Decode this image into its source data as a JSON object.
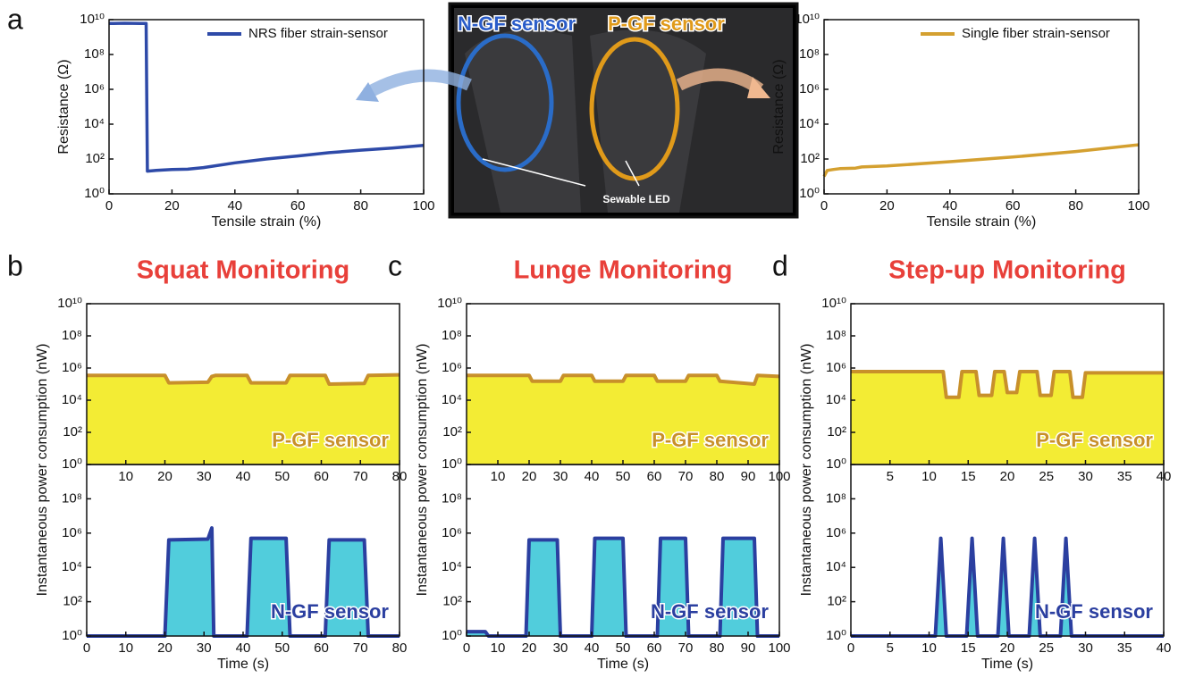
{
  "figure": {
    "panel_labels": [
      "a",
      "b",
      "c",
      "d"
    ],
    "photo_labels": [
      "N-GF sensor",
      "P-GF sensor",
      "Sewable LED"
    ]
  },
  "chart_data": [
    {
      "type": "line",
      "xlabel": "Tensile strain (%)",
      "ylabel": "Resistance (Ω)",
      "log_y": true,
      "xlim": [
        0,
        100
      ],
      "xticks": [
        0,
        20,
        40,
        60,
        80,
        100
      ],
      "ylim": [
        1,
        10000000000
      ],
      "yticks": [
        {
          "value": 1,
          "label": "10⁰"
        },
        {
          "value": 100,
          "label": "10²"
        },
        {
          "value": 10000,
          "label": "10⁴"
        },
        {
          "value": 1000000,
          "label": "10⁶"
        },
        {
          "value": 100000000,
          "label": "10⁸"
        },
        {
          "value": 10000000000,
          "label": "10¹⁰"
        }
      ],
      "x": [
        0,
        5,
        10,
        11.8,
        12.2,
        15,
        20,
        25,
        30,
        40,
        50,
        60,
        70,
        80,
        90,
        100
      ],
      "series": [
        {
          "name": "NRS fiber strain-sensor",
          "color": "#2e4aa8",
          "values": [
            6000000000,
            6200000000,
            6000000000,
            6000000000,
            20,
            22,
            25,
            26,
            32,
            60,
            100,
            150,
            230,
            320,
            420,
            600
          ]
        }
      ]
    },
    {
      "type": "line",
      "xlabel": "Tensile strain (%)",
      "ylabel": "Resistance (Ω)",
      "log_y": true,
      "xlim": [
        0,
        100
      ],
      "xticks": [
        0,
        20,
        40,
        60,
        80,
        100
      ],
      "ylim": [
        1,
        10000000000
      ],
      "yticks": [
        {
          "value": 1,
          "label": "10⁰"
        },
        {
          "value": 100,
          "label": "10²"
        },
        {
          "value": 10000,
          "label": "10⁴"
        },
        {
          "value": 1000000,
          "label": "10⁶"
        },
        {
          "value": 100000000,
          "label": "10⁸"
        },
        {
          "value": 10000000000,
          "label": "10¹⁰"
        }
      ],
      "x": [
        0,
        0.5,
        1,
        3,
        5,
        10,
        12,
        20,
        40,
        60,
        80,
        100
      ],
      "series": [
        {
          "name": "Single fiber strain-sensor",
          "color": "#d4a030",
          "values": [
            10,
            15,
            22,
            25,
            28,
            30,
            35,
            40,
            70,
            130,
            270,
            650
          ]
        }
      ]
    },
    {
      "type": "area",
      "title": "Squat Monitoring",
      "ylabel": "Instantaneous power consumption (nW)",
      "log_y": true,
      "xlim": [
        0,
        80
      ],
      "xticks": [
        10,
        20,
        30,
        40,
        50,
        60,
        70,
        80
      ],
      "ylim": [
        1,
        10000000000
      ],
      "yticks": [
        {
          "value": 1,
          "label": "10⁰"
        },
        {
          "value": 100,
          "label": "10²"
        },
        {
          "value": 10000,
          "label": "10⁴"
        },
        {
          "value": 1000000,
          "label": "10⁶"
        },
        {
          "value": 100000000,
          "label": "10⁸"
        },
        {
          "value": 10000000000,
          "label": "10¹⁰"
        }
      ],
      "x": [
        0,
        20,
        21,
        31,
        32,
        33,
        41,
        42,
        51,
        52,
        61,
        62,
        71,
        72,
        80
      ],
      "series": [
        {
          "name": "P-GF sensor",
          "color": "#c8902a",
          "fill": "#f2ea1e",
          "values": [
            350000,
            350000,
            120000,
            130000,
            300000,
            350000,
            350000,
            120000,
            120000,
            350000,
            350000,
            100000,
            110000,
            350000,
            380000
          ]
        }
      ]
    },
    {
      "type": "area",
      "xlabel": "Time (s)",
      "log_y": true,
      "xlim": [
        0,
        80
      ],
      "xticks": [
        0,
        10,
        20,
        30,
        40,
        50,
        60,
        70,
        80
      ],
      "ylim": [
        1,
        10000000000
      ],
      "yticks": [
        {
          "value": 1,
          "label": "10⁰"
        },
        {
          "value": 100,
          "label": "10²"
        },
        {
          "value": 10000,
          "label": "10⁴"
        },
        {
          "value": 1000000,
          "label": "10⁶"
        },
        {
          "value": 100000000,
          "label": "10⁸"
        }
      ],
      "x": [
        0,
        20,
        21,
        31,
        32,
        32.5,
        41,
        42,
        51,
        52,
        61,
        62,
        71,
        72,
        80
      ],
      "series": [
        {
          "name": "N-GF sensor",
          "color": "#2b3fa0",
          "fill": "#3ec8d8",
          "values": [
            1,
            1,
            400000,
            450000,
            2000000,
            1,
            1,
            500000,
            500000,
            1,
            1,
            400000,
            400000,
            1,
            1
          ]
        }
      ]
    },
    {
      "type": "area",
      "title": "Lunge Monitoring",
      "ylabel": "Instantaneous power consumption (nW)",
      "log_y": true,
      "xlim": [
        0,
        100
      ],
      "xticks": [
        10,
        20,
        30,
        40,
        50,
        60,
        70,
        80,
        90,
        100
      ],
      "ylim": [
        1,
        10000000000
      ],
      "yticks": [
        {
          "value": 1,
          "label": "10⁰"
        },
        {
          "value": 100,
          "label": "10²"
        },
        {
          "value": 10000,
          "label": "10⁴"
        },
        {
          "value": 1000000,
          "label": "10⁶"
        },
        {
          "value": 100000000,
          "label": "10⁸"
        },
        {
          "value": 10000000000,
          "label": "10¹⁰"
        }
      ],
      "x": [
        0,
        20,
        21,
        30,
        31,
        40,
        41,
        50,
        51,
        60,
        61,
        70,
        71,
        80,
        81,
        92,
        93,
        100
      ],
      "series": [
        {
          "name": "P-GF sensor",
          "color": "#c8902a",
          "fill": "#f2ea1e",
          "values": [
            350000,
            350000,
            150000,
            150000,
            350000,
            350000,
            150000,
            150000,
            350000,
            350000,
            150000,
            150000,
            350000,
            350000,
            150000,
            100000,
            350000,
            300000
          ]
        }
      ]
    },
    {
      "type": "area",
      "xlabel": "Time (s)",
      "log_y": true,
      "xlim": [
        0,
        100
      ],
      "xticks": [
        0,
        10,
        20,
        30,
        40,
        50,
        60,
        70,
        80,
        90,
        100
      ],
      "ylim": [
        1,
        10000000000
      ],
      "yticks": [
        {
          "value": 1,
          "label": "10⁰"
        },
        {
          "value": 100,
          "label": "10²"
        },
        {
          "value": 10000,
          "label": "10⁴"
        },
        {
          "value": 1000000,
          "label": "10⁶"
        },
        {
          "value": 100000000,
          "label": "10⁸"
        }
      ],
      "x": [
        0,
        6,
        7,
        19,
        20,
        29,
        30,
        40,
        41,
        50,
        51,
        61,
        62,
        70,
        71,
        81,
        82,
        92,
        93,
        100
      ],
      "series": [
        {
          "name": "N-GF sensor",
          "color": "#2b3fa0",
          "fill": "#3ec8d8",
          "values": [
            1.8,
            1.8,
            1,
            1,
            400000,
            400000,
            1,
            1,
            500000,
            500000,
            1,
            1,
            500000,
            500000,
            1,
            1,
            500000,
            500000,
            1,
            1
          ]
        }
      ]
    },
    {
      "type": "area",
      "title": "Step-up Monitoring",
      "ylabel": "Instantaneous power consumption (nW)",
      "log_y": true,
      "xlim": [
        0,
        40
      ],
      "xticks": [
        5,
        10,
        15,
        20,
        25,
        30,
        35,
        40
      ],
      "ylim": [
        1,
        10000000000
      ],
      "yticks": [
        {
          "value": 1,
          "label": "10⁰"
        },
        {
          "value": 100,
          "label": "10²"
        },
        {
          "value": 10000,
          "label": "10⁴"
        },
        {
          "value": 1000000,
          "label": "10⁶"
        },
        {
          "value": 100000000,
          "label": "10⁸"
        },
        {
          "value": 10000000000,
          "label": "10¹⁰"
        }
      ],
      "x": [
        0,
        11.8,
        12.2,
        13.8,
        14.2,
        16,
        16.4,
        18,
        18.4,
        19.6,
        20,
        21.2,
        21.6,
        23.8,
        24.2,
        25.6,
        26,
        28,
        28.4,
        29.6,
        30,
        40
      ],
      "series": [
        {
          "name": "P-GF sensor",
          "color": "#c8902a",
          "fill": "#f2ea1e",
          "values": [
            600000,
            600000,
            15000,
            15000,
            600000,
            600000,
            20000,
            20000,
            600000,
            600000,
            30000,
            30000,
            600000,
            600000,
            20000,
            20000,
            600000,
            600000,
            15000,
            15000,
            500000,
            500000
          ]
        }
      ]
    },
    {
      "type": "area",
      "xlabel": "Time (s)",
      "log_y": true,
      "xlim": [
        0,
        40
      ],
      "xticks": [
        0,
        5,
        10,
        15,
        20,
        25,
        30,
        35,
        40
      ],
      "ylim": [
        1,
        10000000000
      ],
      "yticks": [
        {
          "value": 1,
          "label": "10⁰"
        },
        {
          "value": 100,
          "label": "10²"
        },
        {
          "value": 10000,
          "label": "10⁴"
        },
        {
          "value": 1000000,
          "label": "10⁶"
        },
        {
          "value": 100000000,
          "label": "10⁸"
        }
      ],
      "x": [
        0,
        10.8,
        11.5,
        12.2,
        14.8,
        15.5,
        16.2,
        18.8,
        19.5,
        20.2,
        22.8,
        23.5,
        24.2,
        26.8,
        27.5,
        28.2,
        40
      ],
      "series": [
        {
          "name": "N-GF sensor",
          "color": "#2b3fa0",
          "fill": "#3ec8d8",
          "values": [
            1,
            1,
            500000,
            1,
            1,
            500000,
            1,
            1,
            500000,
            1,
            1,
            500000,
            1,
            1,
            500000,
            1,
            1
          ]
        }
      ]
    }
  ]
}
